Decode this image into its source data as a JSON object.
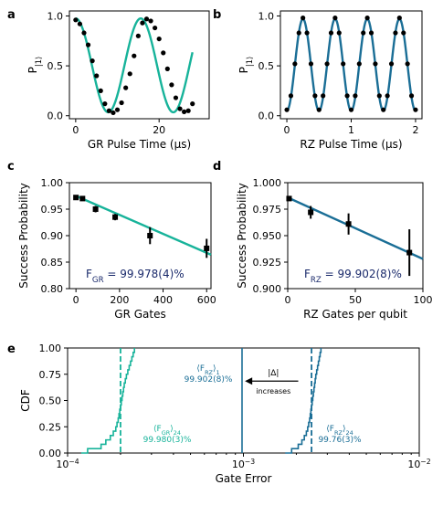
{
  "colors": {
    "gr": "#17b39a",
    "rz": "#1a6e96",
    "fit_text": "#1a2a6b",
    "data": "#000000"
  },
  "chart_data": [
    {
      "panel": "a",
      "type": "scatter",
      "xlabel": "GR Pulse Time (µs)",
      "ylabel": "P|1⟩",
      "xlim": [
        -1.5,
        32
      ],
      "ylim": [
        -0.03,
        1.05
      ],
      "xticks": [
        0,
        20
      ],
      "yticks": [
        0.0,
        0.5,
        1.0
      ],
      "ytick_labels": [
        "0.0",
        "0.5",
        "1.0"
      ],
      "fit": {
        "model": "cos",
        "amplitude": 0.47,
        "offset": 0.505,
        "period": 15.6
      },
      "points": {
        "x": [
          0,
          1,
          2,
          3,
          4,
          5,
          6,
          7,
          8,
          9,
          10,
          11,
          12,
          13,
          14,
          15,
          16,
          17,
          18,
          19,
          20,
          21,
          22,
          23,
          24,
          25,
          26,
          27,
          28
        ],
        "y": [
          0.96,
          0.92,
          0.83,
          0.71,
          0.55,
          0.4,
          0.25,
          0.12,
          0.05,
          0.03,
          0.06,
          0.13,
          0.28,
          0.42,
          0.6,
          0.8,
          0.93,
          0.97,
          0.95,
          0.88,
          0.77,
          0.63,
          0.47,
          0.31,
          0.18,
          0.07,
          0.04,
          0.05,
          0.12
        ]
      }
    },
    {
      "panel": "b",
      "type": "scatter",
      "xlabel": "RZ Pulse Time (µs)",
      "ylabel": "P|1⟩",
      "xlim": [
        -0.1,
        2.1
      ],
      "ylim": [
        -0.03,
        1.05
      ],
      "xticks": [
        0,
        1,
        2
      ],
      "yticks": [
        0.0,
        0.5,
        1.0
      ],
      "ytick_labels": [
        "0.0",
        "0.5",
        "1.0"
      ],
      "fit": {
        "model": "neg-cos",
        "amplitude": 0.46,
        "offset": 0.51,
        "period": 0.5
      },
      "points": {
        "x": [
          0,
          0.0625,
          0.125,
          0.1875,
          0.25,
          0.3125,
          0.375,
          0.4375,
          0.5,
          0.5625,
          0.625,
          0.6875,
          0.75,
          0.8125,
          0.875,
          0.9375,
          1.0,
          1.0625,
          1.125,
          1.1875,
          1.25,
          1.3125,
          1.375,
          1.4375,
          1.5,
          1.5625,
          1.625,
          1.6875,
          1.75,
          1.8125,
          1.875,
          1.9375,
          2.0
        ],
        "y": [
          0.06,
          0.2,
          0.52,
          0.83,
          0.98,
          0.83,
          0.52,
          0.2,
          0.06,
          0.2,
          0.52,
          0.83,
          0.98,
          0.83,
          0.52,
          0.2,
          0.06,
          0.2,
          0.52,
          0.83,
          0.98,
          0.83,
          0.52,
          0.2,
          0.06,
          0.2,
          0.52,
          0.83,
          0.98,
          0.83,
          0.52,
          0.2,
          0.06
        ]
      }
    },
    {
      "panel": "c",
      "type": "scatter",
      "xlabel": "GR Gates",
      "ylabel": "Success Probability",
      "xlim": [
        -30,
        620
      ],
      "ylim": [
        0.8,
        1.0
      ],
      "xticks": [
        0,
        200,
        400,
        600
      ],
      "yticks": [
        0.8,
        0.85,
        0.9,
        0.95,
        1.0
      ],
      "ytick_labels": [
        "0.80",
        "0.85",
        "0.90",
        "0.95",
        "1.00"
      ],
      "fit_line": {
        "x": [
          0,
          620
        ],
        "y": [
          0.975,
          0.864
        ]
      },
      "points": {
        "x": [
          0,
          30,
          90,
          180,
          340,
          600
        ],
        "y": [
          0.972,
          0.97,
          0.95,
          0.935,
          0.9,
          0.876
        ],
        "err": [
          0.004,
          0.004,
          0.006,
          0.006,
          0.016,
          0.018
        ]
      },
      "annotation": {
        "prefix": "F",
        "sub": "GR",
        "text": " = 99.978(4)%"
      }
    },
    {
      "panel": "d",
      "type": "scatter",
      "xlabel": "RZ Gates per qubit",
      "ylabel": "Success Probability",
      "xlim": [
        0,
        100
      ],
      "ylim": [
        0.9,
        1.0
      ],
      "xticks": [
        0,
        50,
        100
      ],
      "yticks": [
        0.9,
        0.925,
        0.95,
        0.975,
        1.0
      ],
      "ytick_labels": [
        "0.900",
        "0.925",
        "0.950",
        "0.975",
        "1.000"
      ],
      "fit_line": {
        "x": [
          0,
          100
        ],
        "y": [
          0.986,
          0.928
        ]
      },
      "points": {
        "x": [
          1,
          17,
          45,
          90
        ],
        "y": [
          0.985,
          0.972,
          0.961,
          0.934
        ],
        "err": [
          0.002,
          0.006,
          0.01,
          0.022
        ]
      },
      "annotation": {
        "prefix": "F",
        "sub": "RZ",
        "text": " = 99.902(8)%"
      }
    },
    {
      "panel": "e",
      "type": "line",
      "xlabel": "Gate Error",
      "ylabel": "CDF",
      "xscale": "log",
      "xlim": [
        0.0001,
        0.01
      ],
      "ylim": [
        0.0,
        1.0
      ],
      "xticks": [
        0.0001,
        0.001,
        0.01
      ],
      "xtick_base": "10",
      "xtick_exponents": [
        "−4",
        "−3",
        "−2"
      ],
      "yticks": [
        0.0,
        0.25,
        0.5,
        0.75,
        1.0
      ],
      "ytick_labels": [
        "0.00",
        "0.25",
        "0.50",
        "0.75",
        "1.00"
      ],
      "series": [
        {
          "color": "gr",
          "median": 0.0002,
          "values": [
            0.00013,
            0.000155,
            0.000165,
            0.000175,
            0.000182,
            0.000188,
            0.000191,
            0.000194,
            0.000196,
            0.000198,
            0.0002,
            0.000202,
            0.000204,
            0.000206,
            0.000208,
            0.00021,
            0.000213,
            0.000216,
            0.00022,
            0.000224,
            0.000228,
            0.000232,
            0.000236,
            0.00024
          ]
        },
        {
          "color": "rz",
          "median": 0.00244,
          "values": [
            0.00188,
            0.00205,
            0.00215,
            0.00222,
            0.00228,
            0.00232,
            0.00235,
            0.00238,
            0.0024,
            0.00242,
            0.00244,
            0.00246,
            0.00248,
            0.0025,
            0.00252,
            0.00254,
            0.00256,
            0.00258,
            0.00261,
            0.00264,
            0.00267,
            0.0027,
            0.00273,
            0.00276
          ]
        }
      ],
      "vline": {
        "x": 0.000982,
        "color": "rz"
      },
      "arrow": {
        "from": 0.00205,
        "to": 0.00102,
        "y": 0.685,
        "label": "|Δ|",
        "sublabel": "increases"
      },
      "annotations": [
        {
          "id": "rz1",
          "pre": "⟨F",
          "sub": "RZ",
          "post": "⟩",
          "post_sub": "1",
          "value": "99.902(8)%",
          "color": "rz"
        },
        {
          "id": "gr24",
          "pre": "⟨F",
          "sub": "GR",
          "post": "⟩",
          "post_sub": "24",
          "value": "99.980(3)%",
          "color": "gr"
        },
        {
          "id": "rz24",
          "pre": "⟨F",
          "sub": "RZ",
          "post": "⟩",
          "post_sub": "24",
          "value": "99.76(3)%",
          "color": "rz"
        }
      ]
    }
  ],
  "panel_letters": [
    "a",
    "b",
    "c",
    "d",
    "e"
  ]
}
